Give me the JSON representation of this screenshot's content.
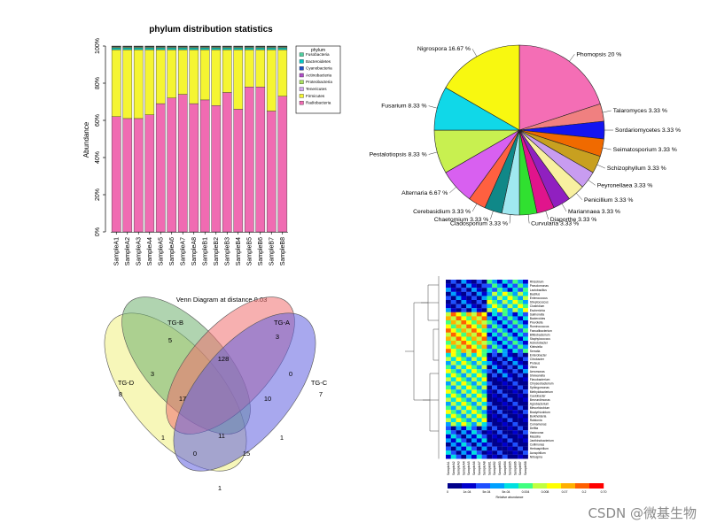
{
  "watermark": "CSDN @微基生物",
  "colors": {
    "pink": "#f06bb2",
    "yellow": "#f5f532",
    "accent_bar": "#00c8c8"
  },
  "chart_data": [
    {
      "type": "bar",
      "stacked": true,
      "title": "phylum distribution statistics",
      "ylabel": "Abundance",
      "xlabel": "",
      "ylim": [
        0,
        100
      ],
      "yticks": [
        "0%",
        "20%",
        "40%",
        "60%",
        "80%",
        "100%"
      ],
      "categories": [
        "SampleA1",
        "SampleA2",
        "SampleA3",
        "SampleA4",
        "SampleA5",
        "SampleA6",
        "SampleA7",
        "SampleA8",
        "SampleB1",
        "SampleB2",
        "SampleB3",
        "SampleB4",
        "SampleB5",
        "SampleB6",
        "SampleB7",
        "SampleB8"
      ],
      "legend_title": "phylum",
      "legend_position": "top-right",
      "series": [
        {
          "name": "Radiobacteria",
          "color": "#f06bb2",
          "values": [
            62,
            61,
            61,
            63,
            69,
            72,
            74,
            69,
            71,
            68,
            75,
            66,
            78,
            78,
            65,
            73
          ]
        },
        {
          "name": "Firmicutes",
          "color": "#f5f532",
          "values": [
            36,
            37,
            37,
            35,
            29,
            26,
            24,
            29,
            27,
            30,
            23,
            32,
            20,
            20,
            33,
            25
          ]
        },
        {
          "name": "Bacteroidetes",
          "color": "#00c8c8",
          "values": [
            1,
            1,
            1,
            1,
            1,
            1,
            1,
            1,
            1,
            1,
            1,
            1,
            1,
            1,
            1,
            1
          ]
        },
        {
          "name": "Proteobacteria",
          "color": "#a8e060",
          "values": [
            0.4,
            0.4,
            0.4,
            0.4,
            0.4,
            0.4,
            0.4,
            0.4,
            0.4,
            0.4,
            0.4,
            0.4,
            0.4,
            0.4,
            0.4,
            0.4
          ]
        },
        {
          "name": "Actinobacteria",
          "color": "#b050c8",
          "values": [
            0.2,
            0.2,
            0.2,
            0.2,
            0.2,
            0.2,
            0.2,
            0.2,
            0.2,
            0.2,
            0.2,
            0.2,
            0.2,
            0.2,
            0.2,
            0.2
          ]
        },
        {
          "name": "Cyanobacteria",
          "color": "#2050c8",
          "values": [
            0.2,
            0.2,
            0.2,
            0.2,
            0.2,
            0.2,
            0.2,
            0.2,
            0.2,
            0.2,
            0.2,
            0.2,
            0.2,
            0.2,
            0.2,
            0.2
          ]
        },
        {
          "name": "Fusobacteria",
          "color": "#50d0a0",
          "values": [
            0.2,
            0.2,
            0.2,
            0.2,
            0.2,
            0.2,
            0.2,
            0.2,
            0.2,
            0.2,
            0.2,
            0.2,
            0.2,
            0.2,
            0.2,
            0.2
          ]
        }
      ],
      "legend_order": [
        "Fusobacteria",
        "Bacteroidetes",
        "Cyanobacteria",
        "Actinobacteria",
        "Proteobacteria",
        "Tenericutes",
        "Firmicutes",
        "Radiobacteria"
      ]
    },
    {
      "type": "pie",
      "slices": [
        {
          "label": "Phomopsis 20 %",
          "value": 20,
          "color": "#f46eb5"
        },
        {
          "label": "Talaromyces 3.33 %",
          "value": 3.33,
          "color": "#f08080"
        },
        {
          "label": "Sordariomycetes 3.33 %",
          "value": 3.33,
          "color": "#1414f0"
        },
        {
          "label": "Seimatosporium 3.33 %",
          "value": 3.33,
          "color": "#f06a00"
        },
        {
          "label": "Schizophyllum 3.33 %",
          "value": 3.33,
          "color": "#c8a020"
        },
        {
          "label": "Peyronellaea 3.33 %",
          "value": 3.33,
          "color": "#c89cf0"
        },
        {
          "label": "Penicillium 3.33 %",
          "value": 3.33,
          "color": "#f8f0a0"
        },
        {
          "label": "Mariannaea 3.33 %",
          "value": 3.33,
          "color": "#9020c0"
        },
        {
          "label": "Diaporthe 3.33 %",
          "value": 3.33,
          "color": "#e0148c"
        },
        {
          "label": "Curvularia 3.33 %",
          "value": 3.33,
          "color": "#30e030"
        },
        {
          "label": "Cladosporium 3.33 %",
          "value": 3.33,
          "color": "#a0e8f0"
        },
        {
          "label": "Chaetomium 3.33 %",
          "value": 3.33,
          "color": "#108888"
        },
        {
          "label": "Cerebasidium 3.33 %",
          "value": 3.33,
          "color": "#ff6040"
        },
        {
          "label": "Alternaria 6.67 %",
          "value": 6.67,
          "color": "#d860f0"
        },
        {
          "label": "Pestalotiopsis 8.33 %",
          "value": 8.33,
          "color": "#c8f050"
        },
        {
          "label": "Fusarium 8.33 %",
          "value": 8.33,
          "color": "#10d8e8"
        },
        {
          "label": "Nigrospora 16.67 %",
          "value": 16.67,
          "color": "#f8f810"
        }
      ]
    },
    {
      "type": "venn",
      "title": "Venn Diagram at distance 0.03",
      "sets": [
        {
          "name": "TG-D",
          "color": "#f0f080"
        },
        {
          "name": "TG-B",
          "color": "#70b070"
        },
        {
          "name": "TG-A",
          "color": "#f07070"
        },
        {
          "name": "TG-C",
          "color": "#6060e0"
        }
      ],
      "region_labels": [
        "8",
        "5",
        "3",
        "7",
        "128",
        "3",
        "0",
        "17",
        "10",
        "1",
        "11",
        "1",
        "0",
        "15",
        "1"
      ]
    },
    {
      "type": "heatmap",
      "legend_ticks": [
        "0",
        "1e-04",
        "5e-04",
        "5e-04",
        "0.004",
        "0.008",
        "0.07",
        "0.2",
        "0.70"
      ],
      "legend_label": "Relative abundance",
      "col_labels": [
        "SampleA1",
        "SampleA2",
        "SampleA3",
        "SampleA4",
        "SampleA5",
        "SampleA6",
        "SampleA7",
        "SampleA8",
        "SampleB1",
        "SampleB2",
        "SampleB3",
        "SampleB4",
        "SampleB5",
        "SampleB6",
        "SampleB7",
        "SampleB8"
      ],
      "row_labels": [
        "Rhizobium",
        "Pseudomonas",
        "Lactobacillus",
        "Bacillus",
        "Enterococcus",
        "Streptococcus",
        "Clostridium",
        "Escherichia",
        "Salmonella",
        "Bacteroides",
        "Prevotella",
        "Ruminococcus",
        "Faecalibacterium",
        "Bifidobacterium",
        "Staphylococcus",
        "Acinetobacter",
        "Klebsiella",
        "Serratia",
        "Enterobacter",
        "Citrobacter",
        "Proteus",
        "Vibrio",
        "Aeromonas",
        "Shewanella",
        "Flavobacterium",
        "Chryseobacterium",
        "Sphingomonas",
        "Methylobacterium",
        "Caulobacter",
        "Brevundimonas",
        "Agrobacterium",
        "Mesorhizobium",
        "Bradyrhizobium",
        "Burkholderia",
        "Ralstonia",
        "Comamonas",
        "Delftia",
        "Variovorax",
        "Massilia",
        "Janthinobacterium",
        "Collimonas",
        "Herbaspirillum",
        "Azospirillum",
        "Nitrospira"
      ]
    }
  ]
}
